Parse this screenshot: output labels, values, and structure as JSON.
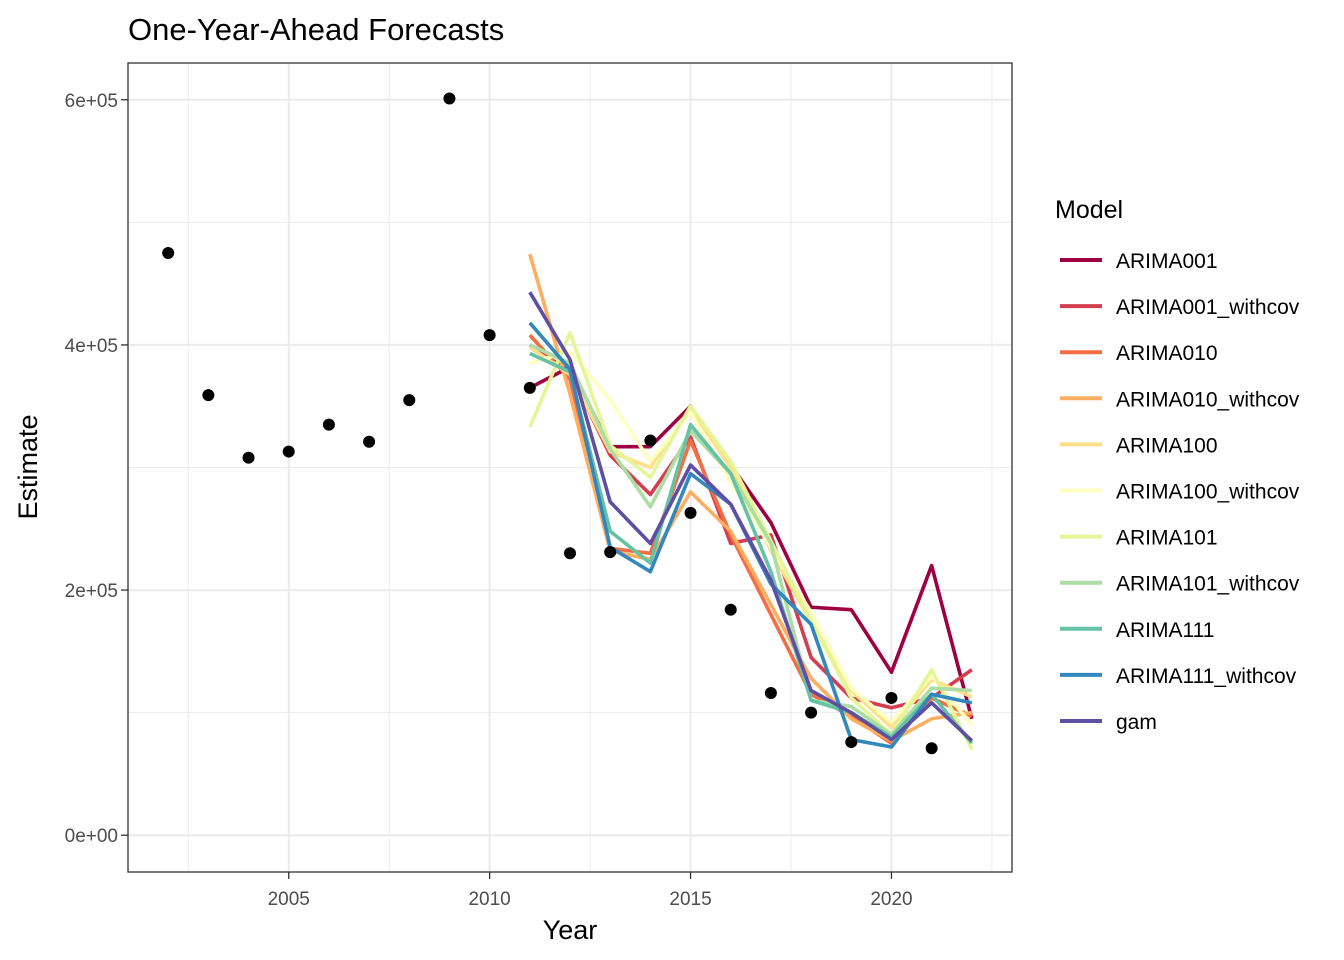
{
  "chart_data": {
    "type": "line",
    "title": "One-Year-Ahead Forecasts",
    "xlabel": "Year",
    "ylabel": "Estimate",
    "xlim": [
      2001,
      2023
    ],
    "ylim": [
      -30000,
      630000
    ],
    "x_ticks": [
      2005,
      2010,
      2015,
      2020
    ],
    "x_tick_labels": [
      "2005",
      "2010",
      "2015",
      "2020"
    ],
    "y_ticks": [
      0,
      200000,
      400000,
      600000
    ],
    "y_tick_labels": [
      "0e+00",
      "2e+05",
      "4e+05",
      "6e+05"
    ],
    "grid": true,
    "legend": {
      "title": "Model",
      "position": "right"
    },
    "observed": {
      "color": "#000000",
      "x": [
        2002,
        2003,
        2004,
        2005,
        2006,
        2007,
        2008,
        2009,
        2010,
        2011,
        2012,
        2013,
        2014,
        2015,
        2016,
        2017,
        2018,
        2019,
        2020,
        2021
      ],
      "y": [
        475000,
        359000,
        308000,
        313000,
        335000,
        321000,
        355000,
        601000,
        408000,
        365000,
        230000,
        231000,
        322000,
        263000,
        184000,
        116000,
        100000,
        76000,
        112000,
        71000
      ]
    },
    "x": [
      2011,
      2012,
      2013,
      2014,
      2015,
      2016,
      2017,
      2018,
      2019,
      2020,
      2021,
      2022
    ],
    "series": [
      {
        "name": "ARIMA001",
        "color": "#9E0142",
        "values": [
          365000,
          382000,
          317000,
          317000,
          350000,
          302000,
          255000,
          186000,
          184000,
          133000,
          220000,
          95000
        ]
      },
      {
        "name": "ARIMA001_withcov",
        "color": "#D53E4F",
        "values": [
          400000,
          378000,
          310000,
          278000,
          325000,
          238000,
          245000,
          145000,
          112000,
          104000,
          112000,
          135000
        ]
      },
      {
        "name": "ARIMA010",
        "color": "#F46D43",
        "values": [
          408000,
          372000,
          234000,
          230000,
          322000,
          245000,
          180000,
          115000,
          97000,
          75000,
          112000,
          97000
        ]
      },
      {
        "name": "ARIMA010_withcov",
        "color": "#FDAE61",
        "values": [
          474000,
          360000,
          232000,
          225000,
          280000,
          248000,
          188000,
          128000,
          95000,
          77000,
          95000,
          100000
        ]
      },
      {
        "name": "ARIMA100",
        "color": "#FEE08B",
        "values": [
          398000,
          376000,
          313000,
          300000,
          348000,
          300000,
          232000,
          174000,
          118000,
          88000,
          127000,
          113000
        ]
      },
      {
        "name": "ARIMA100_withcov",
        "color": "#FFFFBF",
        "values": [
          385000,
          395000,
          355000,
          305000,
          345000,
          288000,
          235000,
          182000,
          120000,
          92000,
          130000,
          90000
        ]
      },
      {
        "name": "ARIMA101",
        "color": "#E6F598",
        "values": [
          333000,
          410000,
          318000,
          292000,
          350000,
          305000,
          240000,
          175000,
          112000,
          82000,
          135000,
          70000
        ]
      },
      {
        "name": "ARIMA101_withcov",
        "color": "#ABDDA4",
        "values": [
          400000,
          385000,
          315000,
          268000,
          330000,
          295000,
          238000,
          110000,
          105000,
          82000,
          120000,
          118000
        ]
      },
      {
        "name": "ARIMA111",
        "color": "#66C2A5",
        "values": [
          393000,
          378000,
          248000,
          222000,
          335000,
          295000,
          215000,
          110000,
          100000,
          80000,
          115000,
          75000
        ]
      },
      {
        "name": "ARIMA111_withcov",
        "color": "#3288BD",
        "values": [
          418000,
          380000,
          235000,
          215000,
          295000,
          270000,
          205000,
          172000,
          78000,
          72000,
          115000,
          108000
        ]
      },
      {
        "name": "gam",
        "color": "#5E4FA2",
        "values": [
          443000,
          388000,
          272000,
          238000,
          302000,
          270000,
          208000,
          118000,
          100000,
          78000,
          108000,
          77000
        ]
      }
    ]
  }
}
